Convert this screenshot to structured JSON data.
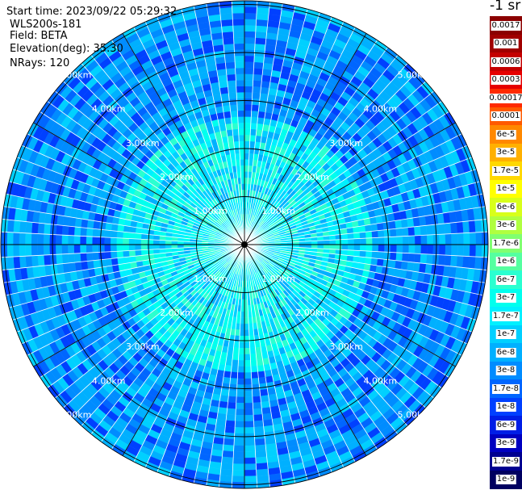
{
  "header": {
    "start_time": "Start time: 2023/09/22 05:29:32",
    "instrument": "WLS200s-181",
    "field": "Field: BETA",
    "elevation": "Elevation(deg): 35.30",
    "nrays": "NRays: 120"
  },
  "unit_label": "-1 sr",
  "range_rings": {
    "labels": [
      "1.00km",
      "2.00km",
      "3.00km",
      "4.00km",
      "5.00km"
    ],
    "max_range_km": 5.0
  },
  "rays": 120,
  "colorbar": [
    {
      "label": "0.0017",
      "color": "#8b0000"
    },
    {
      "label": "0.001",
      "color": "#a00000"
    },
    {
      "label": "0.0006",
      "color": "#c40000"
    },
    {
      "label": "0.0003",
      "color": "#e60000"
    },
    {
      "label": "0.00017",
      "color": "#ff2a00"
    },
    {
      "label": "0.0001",
      "color": "#ff5a00"
    },
    {
      "label": "6e-5",
      "color": "#ff8800"
    },
    {
      "label": "3e-5",
      "color": "#ffb000"
    },
    {
      "label": "1.7e-5",
      "color": "#ffd800"
    },
    {
      "label": "1e-5",
      "color": "#ffff00"
    },
    {
      "label": "6e-6",
      "color": "#d8ff1a"
    },
    {
      "label": "3e-6",
      "color": "#b0ff40"
    },
    {
      "label": "1.7e-6",
      "color": "#80ff70"
    },
    {
      "label": "1e-6",
      "color": "#55ffa0"
    },
    {
      "label": "6e-7",
      "color": "#2affd0"
    },
    {
      "label": "3e-7",
      "color": "#00ffee"
    },
    {
      "label": "1.7e-7",
      "color": "#00f0ff"
    },
    {
      "label": "1e-7",
      "color": "#00d0ff"
    },
    {
      "label": "6e-8",
      "color": "#00b0ff"
    },
    {
      "label": "3e-8",
      "color": "#008cff"
    },
    {
      "label": "1.7e-8",
      "color": "#0066ff"
    },
    {
      "label": "1e-8",
      "color": "#0040ff"
    },
    {
      "label": "6e-9",
      "color": "#001ee6"
    },
    {
      "label": "3e-9",
      "color": "#0000c0"
    },
    {
      "label": "1.7e-9",
      "color": "#000090"
    },
    {
      "label": "1e-9",
      "color": "#000060"
    }
  ],
  "field_colors": {
    "near": [
      "#00ffee",
      "#00f0ff",
      "#2affd0",
      "#00d0ff",
      "#00e8ff"
    ],
    "mid": [
      "#00f0ff",
      "#00d0ff",
      "#00b0ff",
      "#2affd0",
      "#00ffee"
    ],
    "far": [
      "#00b0ff",
      "#008cff",
      "#0066ff",
      "#00d0ff",
      "#0040ff",
      "#00b0ff"
    ]
  }
}
